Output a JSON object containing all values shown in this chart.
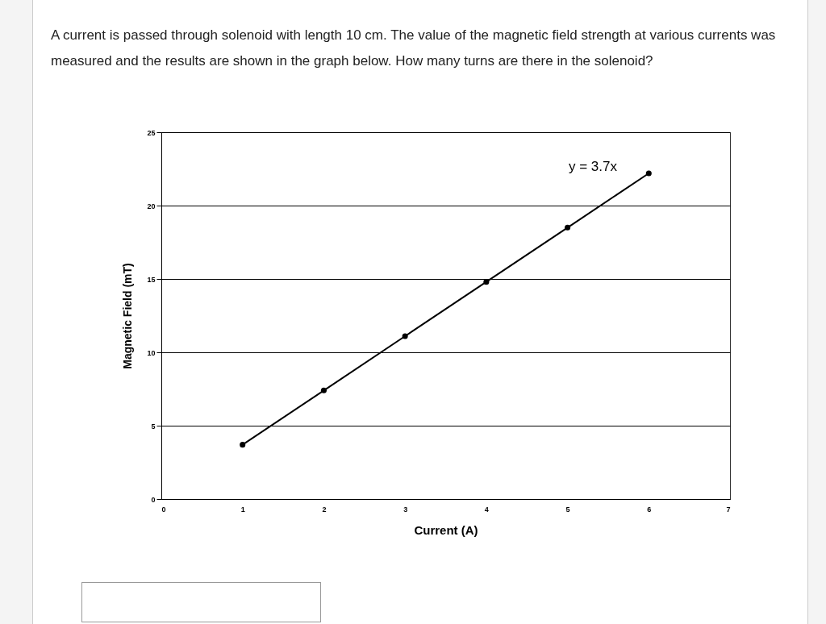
{
  "chart_data": {
    "type": "line",
    "title": "A current is passed through solenoid with length 10 cm. The value of the magnetic field strength at various currents was measured and the results are shown in the graph below. How many turns are there in the solenoid?",
    "xlabel": "Current (A)",
    "ylabel": "Magnetic Field (mT)",
    "x": [
      1,
      2,
      3,
      4,
      5,
      6
    ],
    "series": [
      {
        "color": "#000000",
        "values": [
          3.7,
          7.4,
          11.1,
          14.8,
          18.5,
          22.2
        ]
      }
    ],
    "xlim": [
      0,
      7
    ],
    "xticks": [
      0,
      1,
      2,
      3,
      4,
      5,
      6,
      7
    ],
    "ylim": [
      0,
      25
    ],
    "yticks": [
      0,
      5,
      10,
      15,
      20,
      25
    ],
    "grid": "y",
    "marker": "circle",
    "line_style": "solid",
    "annotations": [
      "y = 3.7x"
    ]
  }
}
